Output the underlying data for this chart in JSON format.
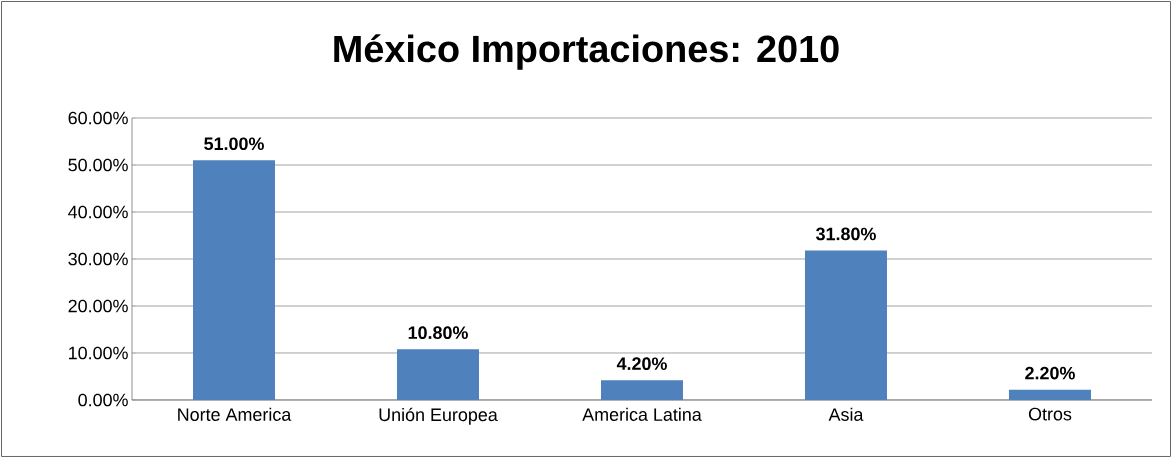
{
  "chart_data": {
    "type": "bar",
    "title": "México Importaciones: 2010",
    "categories": [
      "Norte America",
      "Unión Europea",
      "America Latina",
      "Asia",
      "Otros"
    ],
    "values": [
      51.0,
      10.8,
      4.2,
      31.8,
      2.2
    ],
    "value_labels": [
      "51.00%",
      "10.80%",
      "4.20%",
      "31.80%",
      "2.20%"
    ],
    "color": "#4f81bd",
    "ylim": [
      0,
      60
    ],
    "yticks": [
      {
        "value": 0,
        "label": "0.00%"
      },
      {
        "value": 10,
        "label": "10.00%"
      },
      {
        "value": 20,
        "label": "20.00%"
      },
      {
        "value": 30,
        "label": "30.00%"
      },
      {
        "value": 40,
        "label": "40.00%"
      },
      {
        "value": 50,
        "label": "50.00%"
      },
      {
        "value": 60,
        "label": "60.00%"
      }
    ],
    "grid": "y"
  }
}
